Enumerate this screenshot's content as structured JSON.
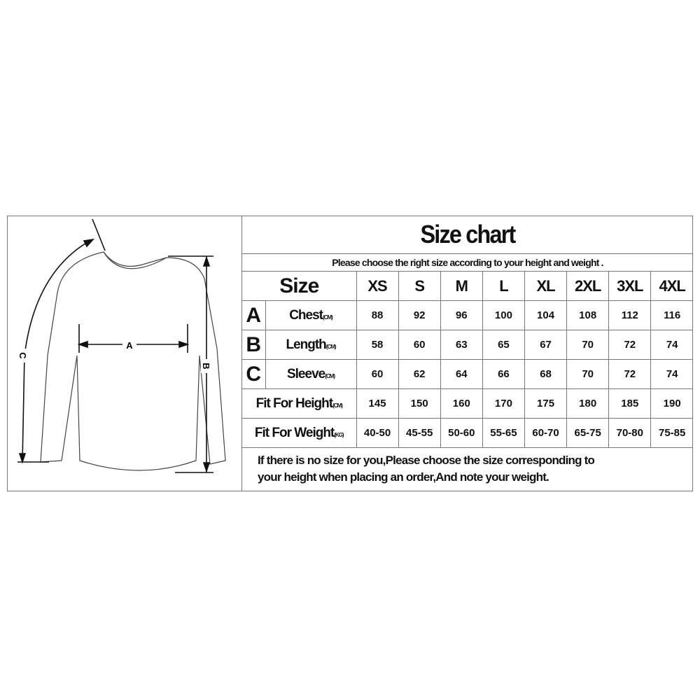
{
  "title": "Size chart",
  "subtitle": "Please choose the right size according to your height and weight .",
  "header": {
    "label": "Size",
    "sizes": [
      "XS",
      "S",
      "M",
      "L",
      "XL",
      "2XL",
      "3XL",
      "4XL"
    ]
  },
  "rows": [
    {
      "letter": "A",
      "label": "Chest",
      "unit": "(CM)",
      "values": [
        "88",
        "92",
        "96",
        "100",
        "104",
        "108",
        "112",
        "116"
      ]
    },
    {
      "letter": "B",
      "label": "Length",
      "unit": "(CM)",
      "values": [
        "58",
        "60",
        "63",
        "65",
        "67",
        "70",
        "72",
        "74"
      ]
    },
    {
      "letter": "C",
      "label": "Sleeve",
      "unit": "(CM)",
      "values": [
        "60",
        "62",
        "64",
        "66",
        "68",
        "70",
        "72",
        "74"
      ]
    },
    {
      "label": "Fit For Height",
      "unit": "(CM)",
      "values": [
        "145",
        "150",
        "160",
        "170",
        "175",
        "180",
        "185",
        "190"
      ]
    },
    {
      "label": "Fit For Weight",
      "unit": "(KG)",
      "values": [
        "40-50",
        "45-55",
        "50-60",
        "55-65",
        "60-70",
        "65-75",
        "70-80",
        "75-85"
      ]
    }
  ],
  "note": [
    "If there is no size for you,Please choose the size corresponding to",
    "your height when placing an order,And note your weight."
  ],
  "figure": {
    "labels": {
      "a": "A",
      "b": "B",
      "c": "C"
    }
  }
}
